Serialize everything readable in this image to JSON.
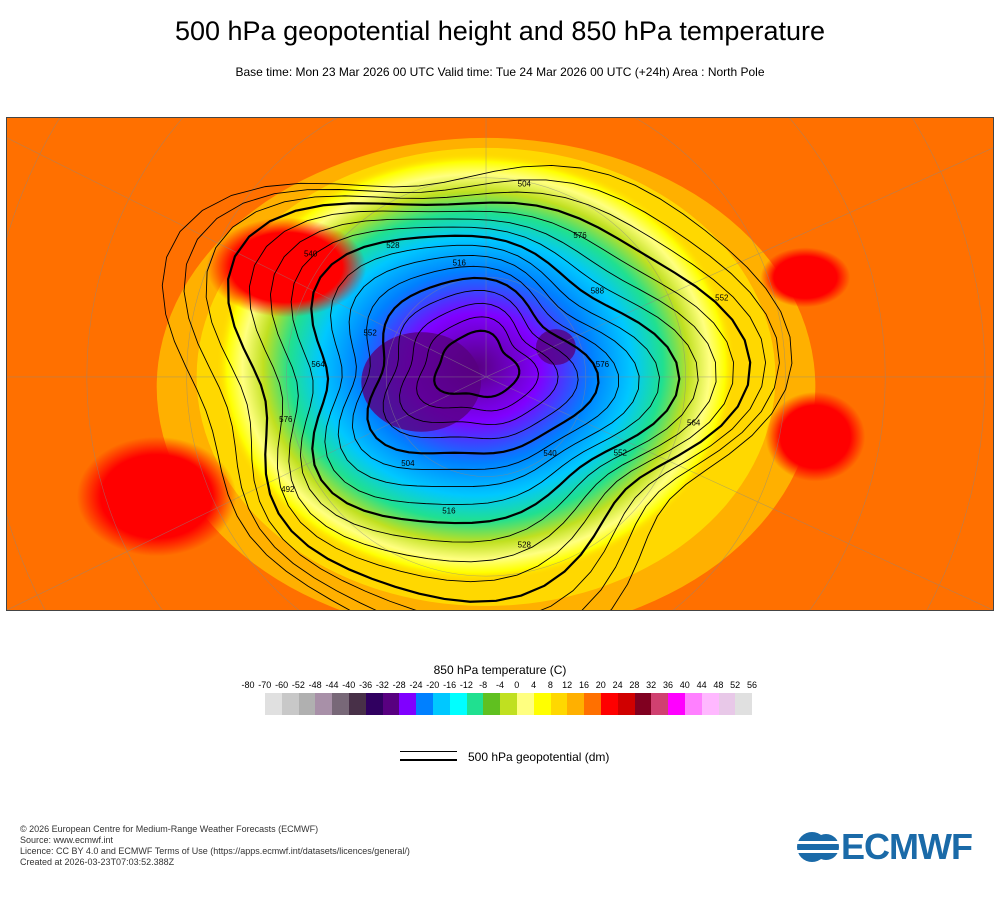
{
  "title": "500 hPa geopotential height and 850 hPa temperature",
  "subtitle": "Base time: Mon 23 Mar 2026 00 UTC Valid time: Tue 24 Mar 2026 00 UTC (+24h) Area : North Pole",
  "map": {
    "projection": "polar stereographic",
    "area": "North Pole",
    "contour_labels": [
      "576",
      "564",
      "552",
      "540",
      "528",
      "516",
      "504",
      "492",
      "576",
      "564",
      "552",
      "540",
      "528",
      "516",
      "504",
      "576",
      "588",
      "552"
    ]
  },
  "colorbar": {
    "title": "850 hPa temperature (C)",
    "ticks": [
      "-80",
      "-70",
      "-60",
      "-52",
      "-48",
      "-44",
      "-40",
      "-36",
      "-32",
      "-28",
      "-24",
      "-20",
      "-16",
      "-12",
      "-8",
      "-4",
      "0",
      "4",
      "8",
      "12",
      "16",
      "20",
      "24",
      "28",
      "32",
      "36",
      "40",
      "44",
      "48",
      "52",
      "56"
    ],
    "colors": [
      "#e0e0e0",
      "#c8c8c8",
      "#b0b0b0",
      "#a890a8",
      "#786878",
      "#483048",
      "#300060",
      "#580080",
      "#8000ff",
      "#0080ff",
      "#00c8ff",
      "#00ffff",
      "#20e090",
      "#60c020",
      "#c0e020",
      "#ffff80",
      "#ffff00",
      "#ffd800",
      "#ffb000",
      "#ff7000",
      "#ff0000",
      "#d00000",
      "#800020",
      "#d04070",
      "#ff00ff",
      "#ff80ff",
      "#ffb8ff",
      "#e8c8e8",
      "#e0e0e0"
    ]
  },
  "legend": {
    "label": "500 hPa geopotential (dm)"
  },
  "footer": [
    "© 2026 European Centre for Medium-Range Weather Forecasts (ECMWF)",
    "Source: www.ecmwf.int",
    "Licence: CC BY 4.0 and ECMWF Terms of Use (https://apps.ecmwf.int/datasets/licences/general/)",
    "Created at 2026-03-23T07:03:52.388Z"
  ],
  "logo": {
    "text": "ECMWF",
    "color": "#1a6aa8"
  }
}
